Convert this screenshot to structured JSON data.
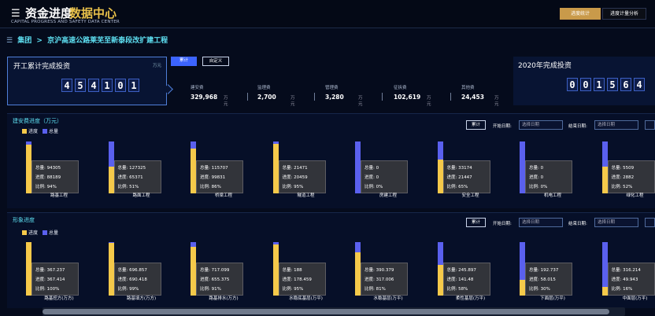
{
  "header": {
    "title": "资金进度",
    "title2": "数据中心",
    "subtitle": "CAPITAL PROGRESS AND SAFETY DATA CENTER",
    "btn_progress": "进度统计",
    "btn_analysis": "进度计量分析"
  },
  "breadcrumb": {
    "root": "集团",
    "sep": ">",
    "project": "京沪高速公路莱芜至新泰段改扩建工程"
  },
  "kpi_main": {
    "title": "开工累计完成投资",
    "unit": "万元",
    "digits": [
      "4",
      "5",
      "4",
      "1",
      "0",
      "1"
    ],
    "btn_cumulative": "累计",
    "btn_custom": "自定义"
  },
  "kpi_stats": [
    {
      "label": "建安费",
      "value": "329,968",
      "unit": "万元"
    },
    {
      "label": "监理费",
      "value": "2,700",
      "unit": "万元"
    },
    {
      "label": "管理费",
      "value": "3,280",
      "unit": "万元"
    },
    {
      "label": "征拆费",
      "value": "102,619",
      "unit": "万元"
    },
    {
      "label": "其他费",
      "value": "24,453",
      "unit": "万元"
    }
  ],
  "kpi_year": {
    "title": "2020年完成投资",
    "digits": [
      "0",
      "0",
      "1",
      "5",
      "6",
      "4"
    ]
  },
  "legend": {
    "progress": "进度",
    "total": "总量"
  },
  "colors": {
    "progress": "#f5c94a",
    "total": "#5a60ee",
    "accent": "#5ee0f2"
  },
  "panel1": {
    "title": "建安费进度（万元）",
    "btn": "累计",
    "start_label": "开始日期:",
    "start_ph": "选择日期",
    "end_label": "结束日期:",
    "end_ph": "选择日期",
    "items": [
      {
        "name": "路基工程",
        "total": "94305",
        "progress": "88189",
        "ratio": "94%",
        "pct": 0.94
      },
      {
        "name": "路面工程",
        "total": "127325",
        "progress": "65371",
        "ratio": "51%",
        "pct": 0.51
      },
      {
        "name": "桥梁工程",
        "total": "115707",
        "progress": "99831",
        "ratio": "86%",
        "pct": 0.86
      },
      {
        "name": "隧道工程",
        "total": "21471",
        "progress": "20459",
        "ratio": "95%",
        "pct": 0.95
      },
      {
        "name": "房建工程",
        "total": "0",
        "progress": "0",
        "ratio": "0%",
        "pct": 0
      },
      {
        "name": "安全工程",
        "total": "33174",
        "progress": "21447",
        "ratio": "65%",
        "pct": 0.65
      },
      {
        "name": "机电工程",
        "total": "0",
        "progress": "0",
        "ratio": "0%",
        "pct": 0
      },
      {
        "name": "绿化工程",
        "total": "5509",
        "progress": "2882",
        "ratio": "52%",
        "pct": 0.52
      }
    ]
  },
  "panel2": {
    "title": "形象进度",
    "btn": "累计",
    "start_label": "开始日期:",
    "start_ph": "选择日期",
    "end_label": "结束日期:",
    "end_ph": "选择日期",
    "items": [
      {
        "name": "路基挖方(万方)",
        "total": "367.237",
        "progress": "367.414",
        "ratio": "100%",
        "pct": 1.0
      },
      {
        "name": "路基填方(万方)",
        "total": "696.857",
        "progress": "690.418",
        "ratio": "99%",
        "pct": 0.99
      },
      {
        "name": "路基排水(万方)",
        "total": "717.099",
        "progress": "655.375",
        "ratio": "91%",
        "pct": 0.91
      },
      {
        "name": "水稳底基层(万平)",
        "total": "188",
        "progress": "178.459",
        "ratio": "95%",
        "pct": 0.95
      },
      {
        "name": "水稳基层(万平)",
        "total": "390.379",
        "progress": "317.006",
        "ratio": "81%",
        "pct": 0.81
      },
      {
        "name": "柔性基层(万平)",
        "total": "245.897",
        "progress": "141.48",
        "ratio": "58%",
        "pct": 0.58
      },
      {
        "name": "下面层(万平)",
        "total": "192.737",
        "progress": "58.015",
        "ratio": "30%",
        "pct": 0.3
      },
      {
        "name": "中面层(万平)",
        "total": "316.214",
        "progress": "49.943",
        "ratio": "16%",
        "pct": 0.16
      }
    ]
  }
}
